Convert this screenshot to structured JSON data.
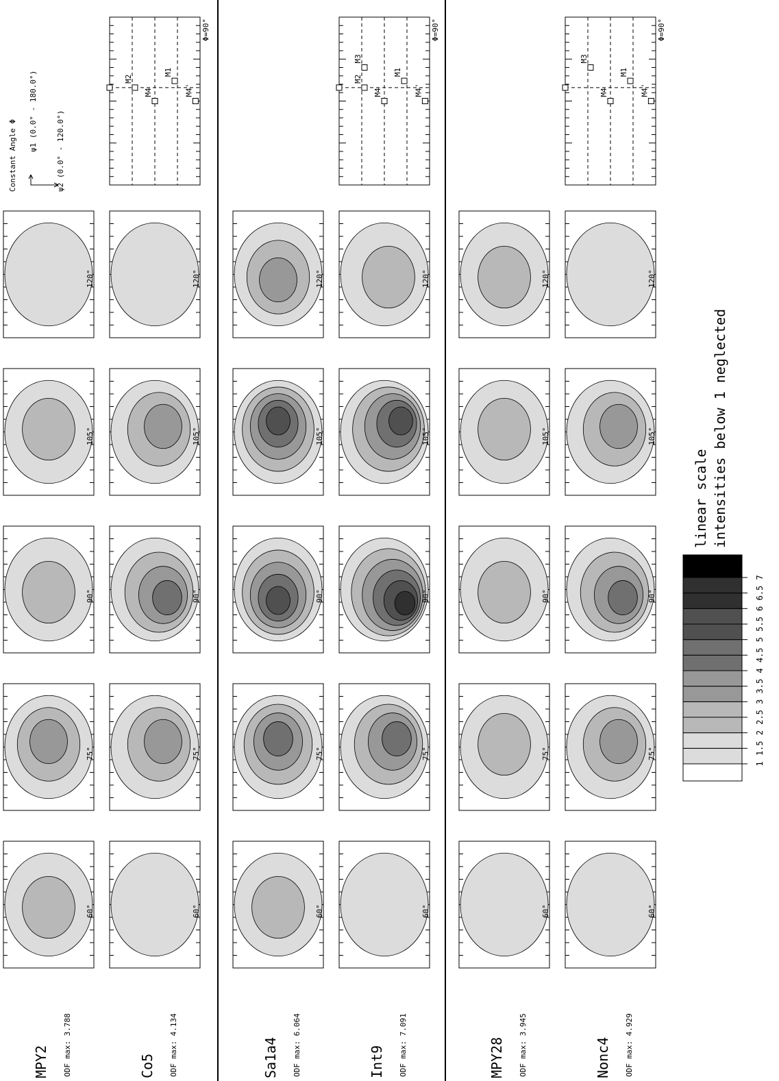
{
  "samples": [
    {
      "name": "MPY2",
      "odf_max": "ODF max: 3.788"
    },
    {
      "name": "Co5",
      "odf_max": "ODF max: 4.134"
    },
    {
      "name": "Sa1a4",
      "odf_max": "ODF max: 6.064"
    },
    {
      "name": "Int9",
      "odf_max": "ODF max: 7.091"
    },
    {
      "name": "MPY28",
      "odf_max": "ODF max: 3.945"
    },
    {
      "name": "Nonc4",
      "odf_max": "ODF max: 4.929"
    }
  ],
  "sections": [
    "60°",
    "75°",
    "90°",
    "105°",
    "120°"
  ],
  "key": {
    "title": "Constant Angle Φ",
    "psi1": "ψ1 (0.0° - 180.0°)",
    "psi2": "ψ2 (0.0° - 120.0°)",
    "groups": [
      {
        "phi": "Φ=90°",
        "markers": [
          "M2",
          "M4",
          "M1",
          "M4'"
        ]
      },
      {
        "phi": "Φ=90°",
        "markers": [
          "M2",
          "M3",
          "M4",
          "M1",
          "M4'"
        ]
      },
      {
        "phi": "Φ=90°",
        "markers": [
          "M3",
          "M4",
          "M1",
          "M4'"
        ]
      }
    ]
  },
  "legend": {
    "levels": [
      1,
      1.5,
      2,
      2.5,
      3,
      3.5,
      4,
      4.5,
      5,
      5.5,
      6,
      6.5,
      7
    ],
    "text": [
      "linear scale",
      "intensities below 1 neglected"
    ]
  }
}
